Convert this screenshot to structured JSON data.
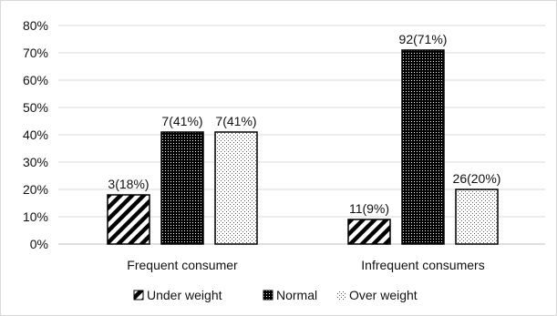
{
  "chart_data": {
    "type": "bar",
    "categories": [
      "Frequent consumer",
      "Infrequent consumers"
    ],
    "series": [
      {
        "name": "Under weight",
        "pattern": "diagonal-stripes",
        "values": [
          18,
          9
        ],
        "labels": [
          "3(18%)",
          "11(9%)"
        ]
      },
      {
        "name": "Normal",
        "pattern": "dark-dots",
        "values": [
          41,
          71
        ],
        "labels": [
          "7(41%)",
          "92(71%)"
        ]
      },
      {
        "name": "Over weight",
        "pattern": "light-dots",
        "values": [
          41,
          20
        ],
        "labels": [
          "7(41%)",
          "26(20%)"
        ]
      }
    ],
    "y_ticks": [
      "0%",
      "10%",
      "20%",
      "30%",
      "40%",
      "50%",
      "60%",
      "70%",
      "80%"
    ],
    "ylim": [
      0,
      80
    ],
    "title": "",
    "xlabel": "",
    "ylabel": "",
    "grid": true,
    "legend_position": "bottom",
    "colors": {
      "grid": "#d9d9d9",
      "bar_outline": "#000000",
      "text": "#111111"
    }
  }
}
